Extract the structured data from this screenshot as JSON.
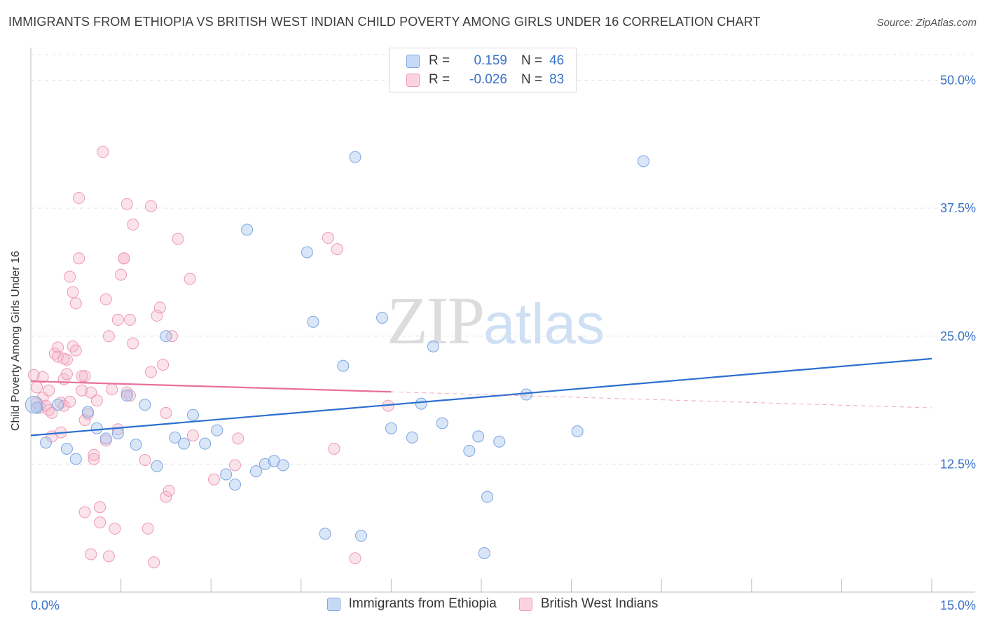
{
  "title": "IMMIGRANTS FROM ETHIOPIA VS BRITISH WEST INDIAN CHILD POVERTY AMONG GIRLS UNDER 16 CORRELATION CHART",
  "source": "Source: ZipAtlas.com",
  "watermark": {
    "zip": "ZIP",
    "atlas": "atlas"
  },
  "colors": {
    "ethiopia": "#a9c8f0",
    "ethiopia_line": "#2b6fcf",
    "bwi": "#f5b8cb",
    "bwi_line": "#e8709a",
    "axis_tick_text": "#3a73c8"
  },
  "legend": {
    "rows": [
      {
        "r_label": "R =",
        "r_value": "0.159",
        "n_label": "N =",
        "n_value": "46"
      },
      {
        "r_label": "R =",
        "r_value": "-0.026",
        "n_label": "N =",
        "n_value": "83"
      }
    ]
  },
  "chart_data": {
    "type": "scatter",
    "title": "IMMIGRANTS FROM ETHIOPIA VS BRITISH WEST INDIAN CHILD POVERTY AMONG GIRLS UNDER 16 CORRELATION CHART",
    "xlabel": "",
    "ylabel": "Child Poverty Among Girls Under 16",
    "xlim": [
      0,
      15
    ],
    "ylim": [
      0,
      52.5
    ],
    "x_tick_labels": [
      "0.0%",
      "15.0%"
    ],
    "y_ticks": [
      12.5,
      25.0,
      37.5,
      50.0
    ],
    "y_tick_labels": [
      "12.5%",
      "25.0%",
      "37.5%",
      "50.0%"
    ],
    "grid": true,
    "legend_position": "top-center",
    "series": [
      {
        "name": "Immigrants from Ethiopia",
        "r": 0.159,
        "n": 46,
        "trend": {
          "x": [
            0,
            15
          ],
          "y": [
            15.3,
            22.8
          ],
          "solid_to": 15
        },
        "points": [
          [
            0.1,
            18.0
          ],
          [
            0.25,
            14.6
          ],
          [
            0.45,
            18.3
          ],
          [
            0.6,
            14.0
          ],
          [
            0.75,
            13.0
          ],
          [
            0.95,
            17.6
          ],
          [
            1.1,
            16.0
          ],
          [
            1.25,
            15.0
          ],
          [
            1.45,
            15.5
          ],
          [
            1.75,
            14.4
          ],
          [
            1.6,
            19.2
          ],
          [
            1.9,
            18.3
          ],
          [
            2.1,
            12.3
          ],
          [
            2.25,
            25.0
          ],
          [
            2.4,
            15.1
          ],
          [
            2.55,
            14.5
          ],
          [
            2.7,
            17.3
          ],
          [
            2.9,
            14.5
          ],
          [
            3.1,
            15.8
          ],
          [
            3.25,
            11.5
          ],
          [
            3.4,
            10.5
          ],
          [
            3.6,
            35.4
          ],
          [
            3.75,
            11.8
          ],
          [
            3.9,
            12.5
          ],
          [
            4.05,
            12.8
          ],
          [
            4.2,
            12.4
          ],
          [
            4.6,
            33.2
          ],
          [
            4.7,
            26.4
          ],
          [
            4.9,
            5.7
          ],
          [
            5.2,
            22.1
          ],
          [
            5.4,
            42.5
          ],
          [
            5.5,
            5.5
          ],
          [
            5.85,
            26.8
          ],
          [
            6.0,
            16.0
          ],
          [
            6.35,
            15.1
          ],
          [
            6.5,
            18.4
          ],
          [
            6.7,
            24.0
          ],
          [
            6.85,
            16.5
          ],
          [
            7.3,
            13.8
          ],
          [
            7.45,
            15.2
          ],
          [
            7.55,
            3.8
          ],
          [
            7.6,
            9.3
          ],
          [
            7.8,
            14.7
          ],
          [
            8.25,
            19.3
          ],
          [
            9.1,
            15.7
          ],
          [
            10.2,
            42.1
          ]
        ]
      },
      {
        "name": "British West Indians",
        "r": -0.026,
        "n": 83,
        "trend": {
          "x": [
            0,
            15
          ],
          "y": [
            20.6,
            18.0
          ],
          "solid_to": 6.0
        },
        "points": [
          [
            0.05,
            21.2
          ],
          [
            0.1,
            20.0
          ],
          [
            0.1,
            18.5
          ],
          [
            0.15,
            18.0
          ],
          [
            0.2,
            19.0
          ],
          [
            0.2,
            21.0
          ],
          [
            0.25,
            18.2
          ],
          [
            0.3,
            17.8
          ],
          [
            0.3,
            19.7
          ],
          [
            0.35,
            15.2
          ],
          [
            0.35,
            17.5
          ],
          [
            0.4,
            23.3
          ],
          [
            0.45,
            23.9
          ],
          [
            0.45,
            23.0
          ],
          [
            0.5,
            15.6
          ],
          [
            0.5,
            18.5
          ],
          [
            0.55,
            18.2
          ],
          [
            0.55,
            20.8
          ],
          [
            0.6,
            21.3
          ],
          [
            0.6,
            22.7
          ],
          [
            0.65,
            30.8
          ],
          [
            0.65,
            18.6
          ],
          [
            0.7,
            29.3
          ],
          [
            0.7,
            24.0
          ],
          [
            0.75,
            23.6
          ],
          [
            0.75,
            28.2
          ],
          [
            0.8,
            38.5
          ],
          [
            0.8,
            32.6
          ],
          [
            0.85,
            19.7
          ],
          [
            0.9,
            16.8
          ],
          [
            0.9,
            21.1
          ],
          [
            0.9,
            7.8
          ],
          [
            0.95,
            17.4
          ],
          [
            1.0,
            3.7
          ],
          [
            1.0,
            19.5
          ],
          [
            1.05,
            13.0
          ],
          [
            1.05,
            13.4
          ],
          [
            1.1,
            18.7
          ],
          [
            1.15,
            8.3
          ],
          [
            1.15,
            6.8
          ],
          [
            1.2,
            43.0
          ],
          [
            1.25,
            14.8
          ],
          [
            1.25,
            28.6
          ],
          [
            1.3,
            25.0
          ],
          [
            1.3,
            3.5
          ],
          [
            1.35,
            19.8
          ],
          [
            1.4,
            6.2
          ],
          [
            1.45,
            26.6
          ],
          [
            1.45,
            15.9
          ],
          [
            1.5,
            31.0
          ],
          [
            1.55,
            32.6
          ],
          [
            1.6,
            37.9
          ],
          [
            1.6,
            19.5
          ],
          [
            1.65,
            19.2
          ],
          [
            1.65,
            26.6
          ],
          [
            1.7,
            24.3
          ],
          [
            1.7,
            35.9
          ],
          [
            1.9,
            12.9
          ],
          [
            1.95,
            6.2
          ],
          [
            2.0,
            37.7
          ],
          [
            2.0,
            21.5
          ],
          [
            2.05,
            2.9
          ],
          [
            2.1,
            27.0
          ],
          [
            2.15,
            27.8
          ],
          [
            2.2,
            22.2
          ],
          [
            2.25,
            17.5
          ],
          [
            2.25,
            9.3
          ],
          [
            2.3,
            9.9
          ],
          [
            2.35,
            25.0
          ],
          [
            2.45,
            34.5
          ],
          [
            2.65,
            30.6
          ],
          [
            2.7,
            15.3
          ],
          [
            3.05,
            11.0
          ],
          [
            3.4,
            12.4
          ],
          [
            3.45,
            15.0
          ],
          [
            4.95,
            34.6
          ],
          [
            5.1,
            33.5
          ],
          [
            5.05,
            14.0
          ],
          [
            5.4,
            3.3
          ],
          [
            5.95,
            18.2
          ],
          [
            1.55,
            32.6
          ],
          [
            0.85,
            21.1
          ],
          [
            0.55,
            22.8
          ]
        ]
      }
    ]
  },
  "legend_bottom": {
    "items": [
      "Immigrants from Ethiopia",
      "British West Indians"
    ]
  }
}
